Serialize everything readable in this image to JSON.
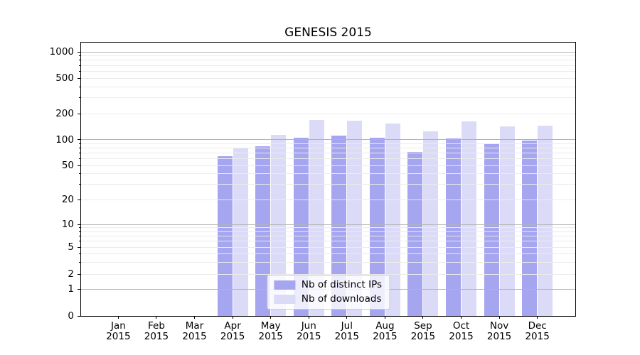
{
  "chart_data": {
    "type": "bar",
    "title": "GENESIS 2015",
    "xlabel": "",
    "ylabel": "",
    "categories": [
      "Jan 2015",
      "Feb 2015",
      "Mar 2015",
      "Apr 2015",
      "May 2015",
      "Jun 2015",
      "Jul 2015",
      "Aug 2015",
      "Sep 2015",
      "Oct 2015",
      "Nov 2015",
      "Dec 2015"
    ],
    "series": [
      {
        "name": "Nb of distinct IPs",
        "color": "#a5a5f0",
        "values": [
          0,
          0,
          0,
          64,
          83,
          104,
          110,
          104,
          72,
          102,
          89,
          97
        ]
      },
      {
        "name": "Nb of downloads",
        "color": "#dbdbf8",
        "values": [
          0,
          0,
          0,
          79,
          113,
          169,
          165,
          153,
          124,
          161,
          143,
          144
        ]
      }
    ],
    "yscale": "symlog-like",
    "ylim": [
      0,
      1300
    ],
    "yticks_labeled": [
      0,
      1,
      2,
      5,
      10,
      20,
      50,
      100,
      200,
      500,
      1000
    ],
    "ygrid_major": [
      1,
      10,
      100,
      1000
    ],
    "ygrid_minor": [
      2,
      3,
      4,
      5,
      6,
      7,
      8,
      9,
      20,
      30,
      40,
      50,
      60,
      70,
      80,
      90,
      200,
      300,
      400,
      500,
      600,
      700,
      800,
      900
    ],
    "grid": "on",
    "legend": {
      "position": "lower center",
      "entries": [
        "Nb of distinct IPs",
        "Nb of downloads"
      ]
    },
    "colors": {
      "grid_major": "#b3b3b3",
      "grid_minor": "#ebebeb",
      "axis": "#000000",
      "background": "#ffffff"
    }
  }
}
